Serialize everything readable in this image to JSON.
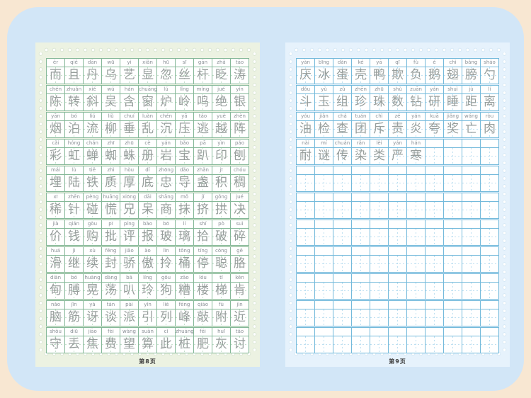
{
  "frame": {
    "outer_bg": "#f8e7d2",
    "mat_bg": "#d2e6f7"
  },
  "columns_per_row": 11,
  "pages": [
    {
      "side": "left",
      "page_label": "第8页",
      "bg": "#ecf2e2",
      "border_color": "#85b898",
      "guide_color": "#c6e0cd",
      "dot_color": "#cfdfc9",
      "rows": [
        {
          "pinyin": [
            "ér",
            "qiě",
            "dān",
            "wū",
            "yì",
            "xiǎn",
            "hū",
            "sī",
            "gān",
            "zhǎ",
            "tāo"
          ],
          "chars": [
            "而",
            "且",
            "丹",
            "乌",
            "艺",
            "显",
            "忽",
            "丝",
            "杆",
            "眨",
            "涛"
          ]
        },
        {
          "pinyin": [
            "chén",
            "zhuǎn",
            "xié",
            "wú",
            "hán",
            "chuāng",
            "lú",
            "lǐng",
            "míng",
            "jué",
            "yín"
          ],
          "chars": [
            "陈",
            "转",
            "斜",
            "吴",
            "含",
            "窗",
            "炉",
            "岭",
            "鸣",
            "绝",
            "银"
          ]
        },
        {
          "pinyin": [
            "yān",
            "bó",
            "liú",
            "liǔ",
            "chuí",
            "luàn",
            "chén",
            "yā",
            "táo",
            "yuè",
            "zhèn"
          ],
          "chars": [
            "烟",
            "泊",
            "流",
            "柳",
            "垂",
            "乱",
            "沉",
            "压",
            "逃",
            "越",
            "阵"
          ]
        },
        {
          "pinyin": [
            "cǎi",
            "hóng",
            "chán",
            "zhī",
            "zhū",
            "cè",
            "yán",
            "bǎo",
            "pā",
            "yìn",
            "páo"
          ],
          "chars": [
            "彩",
            "虹",
            "蝉",
            "蜘",
            "蛛",
            "册",
            "岩",
            "宝",
            "趴",
            "印",
            "刨"
          ]
        },
        {
          "pinyin": [
            "mái",
            "lù",
            "tiě",
            "zhì",
            "hòu",
            "dǐ",
            "zhōng",
            "dǎo",
            "zhǎn",
            "jī",
            "chóu"
          ],
          "chars": [
            "埋",
            "陆",
            "铁",
            "质",
            "厚",
            "底",
            "忠",
            "导",
            "盏",
            "积",
            "稠"
          ]
        },
        {
          "pinyin": [
            "xī",
            "zhēn",
            "pèng",
            "huāng",
            "xiōng",
            "dāi",
            "shāng",
            "mǒ",
            "jǐ",
            "gǒng",
            "jué"
          ],
          "chars": [
            "稀",
            "针",
            "碰",
            "慌",
            "兄",
            "呆",
            "商",
            "抹",
            "挤",
            "拱",
            "决"
          ]
        },
        {
          "pinyin": [
            "jià",
            "qián",
            "gòu",
            "pī",
            "píng",
            "bào",
            "bō",
            "lí",
            "shí",
            "pò",
            "suì"
          ],
          "chars": [
            "价",
            "钱",
            "购",
            "批",
            "评",
            "报",
            "玻",
            "璃",
            "拾",
            "破",
            "碎"
          ]
        },
        {
          "pinyin": [
            "huá",
            "jì",
            "xù",
            "fēng",
            "jiāo",
            "ào",
            "līn",
            "tǒng",
            "tíng",
            "cōng",
            "gē"
          ],
          "chars": [
            "滑",
            "继",
            "续",
            "封",
            "骄",
            "傲",
            "拎",
            "桶",
            "停",
            "聪",
            "胳"
          ]
        },
        {
          "pinyin": [
            "diàn",
            "bó",
            "huàng",
            "dàng",
            "bā",
            "líng",
            "gǒu",
            "zāo",
            "lóu",
            "tī",
            "kěn"
          ],
          "chars": [
            "甸",
            "膊",
            "晃",
            "荡",
            "叭",
            "玲",
            "狗",
            "糟",
            "楼",
            "梯",
            "肯"
          ]
        },
        {
          "pinyin": [
            "nǎo",
            "jīn",
            "yà",
            "tán",
            "pài",
            "yǐn",
            "liè",
            "fēng",
            "qiāo",
            "fù",
            "jìn"
          ],
          "chars": [
            "脑",
            "筋",
            "讶",
            "谈",
            "派",
            "引",
            "列",
            "峰",
            "敲",
            "附",
            "近"
          ]
        },
        {
          "pinyin": [
            "shǒu",
            "diū",
            "jiāo",
            "fèi",
            "wàng",
            "suàn",
            "cǐ",
            "zhuāng",
            "féi",
            "huī",
            "tǎo"
          ],
          "chars": [
            "守",
            "丢",
            "焦",
            "费",
            "望",
            "算",
            "此",
            "桩",
            "肥",
            "灰",
            "讨"
          ]
        }
      ]
    },
    {
      "side": "right",
      "page_label": "第9页",
      "bg": "#e6f2fc",
      "border_color": "#74badb",
      "guide_color": "#bfe0f1",
      "dot_color": "#cce2f1",
      "rows": [
        {
          "pinyin": [
            "yàn",
            "bīng",
            "dàn",
            "ké",
            "yā",
            "qī",
            "fù",
            "é",
            "chì",
            "bǎng",
            "sháo"
          ],
          "chars": [
            "厌",
            "冰",
            "蛋",
            "壳",
            "鸭",
            "欺",
            "负",
            "鹅",
            "翅",
            "膀",
            "勺"
          ]
        },
        {
          "pinyin": [
            "dǒu",
            "yù",
            "zǔ",
            "zhēn",
            "zhū",
            "shù",
            "zuān",
            "yán",
            "shuì",
            "jù",
            "lí"
          ],
          "chars": [
            "斗",
            "玉",
            "组",
            "珍",
            "珠",
            "数",
            "钻",
            "研",
            "睡",
            "距",
            "离"
          ]
        },
        {
          "pinyin": [
            "yóu",
            "jiǎn",
            "chá",
            "tuán",
            "chì",
            "zé",
            "yán",
            "kuā",
            "jiǎng",
            "wáng",
            "ròu"
          ],
          "chars": [
            "油",
            "检",
            "查",
            "团",
            "斥",
            "责",
            "炎",
            "夸",
            "奖",
            "亡",
            "肉"
          ]
        },
        {
          "pinyin": [
            "nài",
            "mí",
            "chuán",
            "rǎn",
            "lèi",
            "yán",
            "hán"
          ],
          "chars": [
            "耐",
            "谜",
            "传",
            "染",
            "类",
            "严",
            "寒"
          ]
        },
        {
          "pinyin": [],
          "chars": []
        },
        {
          "pinyin": [],
          "chars": []
        },
        {
          "pinyin": [],
          "chars": []
        },
        {
          "pinyin": [],
          "chars": []
        },
        {
          "pinyin": [],
          "chars": []
        },
        {
          "pinyin": [],
          "chars": []
        },
        {
          "pinyin": [],
          "chars": []
        }
      ]
    }
  ]
}
